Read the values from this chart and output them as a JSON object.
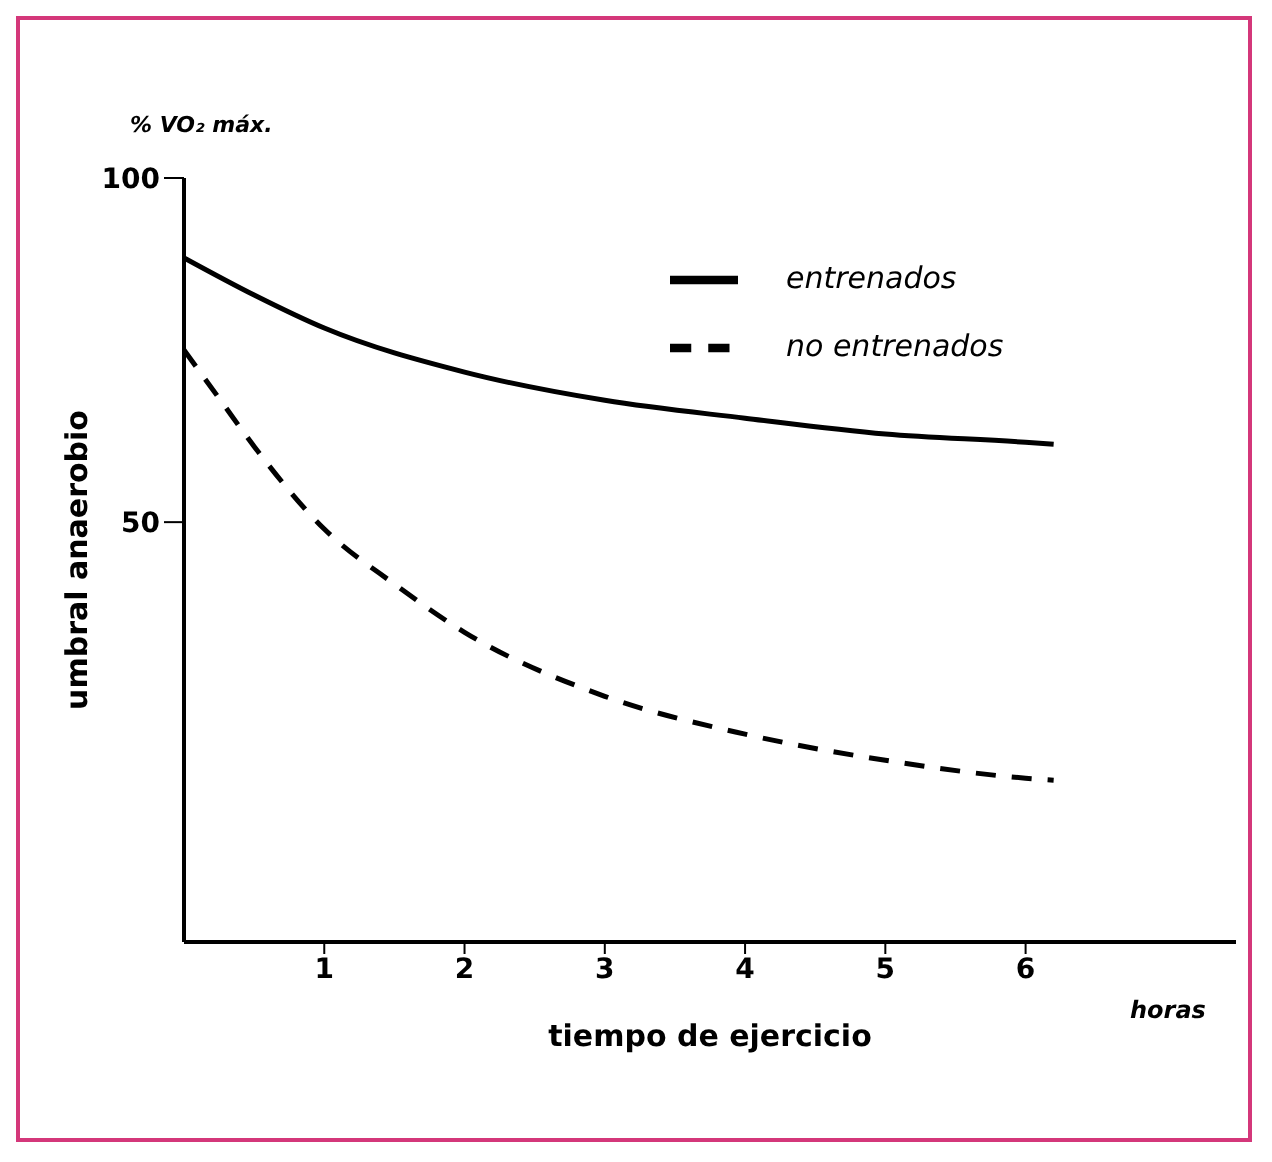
{
  "chart_data": {
    "type": "line",
    "xlabel": "tiempo de ejercicio",
    "ylabel": "umbral anaerobio",
    "annotations": [
      "% VO₂ máx.",
      "horas"
    ],
    "xlim": [
      0,
      7.5
    ],
    "xticks": [
      1,
      2,
      3,
      4,
      5,
      6
    ],
    "ylim": [
      -11,
      100
    ],
    "yticks": [
      50,
      100
    ],
    "grid": false,
    "legend": "top right",
    "marker": "none",
    "series": [
      {
        "name": "entrenados",
        "color": "#000000",
        "line_style": "solid",
        "x": [
          0,
          0.5,
          1,
          2,
          3,
          4,
          5,
          6,
          6.2
        ],
        "values": [
          88.4,
          83,
          78.2,
          71.8,
          67.7,
          65.1,
          62.8,
          61.6,
          61.3
        ]
      },
      {
        "name": "no entrenados",
        "color": "#000000",
        "line_style": "dashed",
        "x": [
          0,
          0.25,
          0.5,
          1,
          1.5,
          2,
          3,
          4,
          5,
          6,
          6.2
        ],
        "values": [
          75,
          68,
          61,
          49,
          41,
          34,
          24.7,
          19.2,
          15.4,
          12.8,
          12.5
        ]
      }
    ]
  }
}
